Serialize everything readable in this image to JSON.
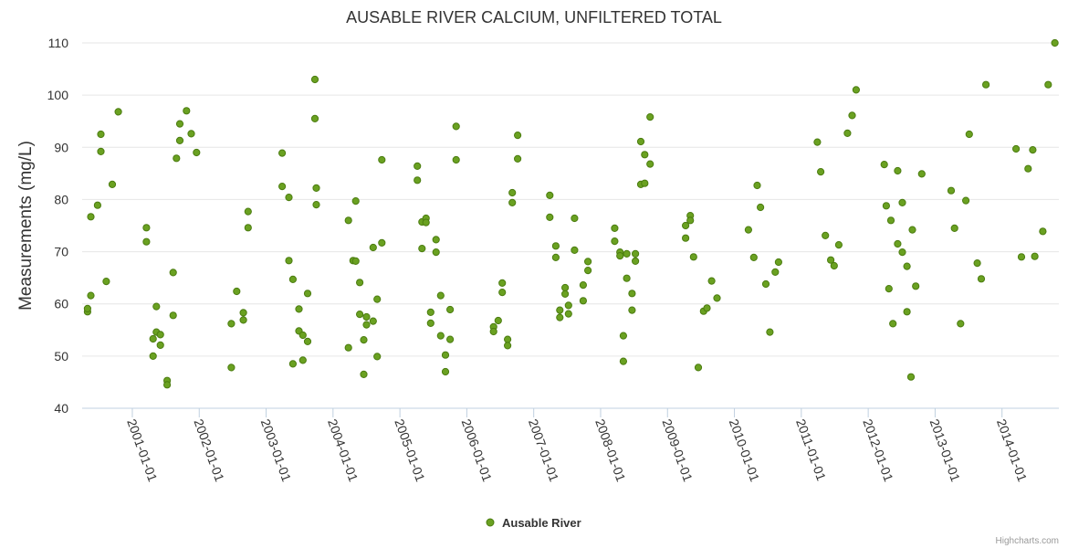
{
  "chart_data": {
    "type": "scatter",
    "title": "AUSABLE RIVER CALCIUM, UNFILTERED TOTAL",
    "xlabel": "",
    "ylabel": "Measurements (mg/L)",
    "ylim": [
      40,
      110
    ],
    "yticks": [
      40,
      50,
      60,
      70,
      80,
      90,
      100,
      110
    ],
    "xlim": [
      2000.25,
      2014.85
    ],
    "xticks": [
      {
        "x": 2001.0,
        "label": "2001-01-01"
      },
      {
        "x": 2002.0,
        "label": "2002-01-01"
      },
      {
        "x": 2003.0,
        "label": "2003-01-01"
      },
      {
        "x": 2004.0,
        "label": "2004-01-01"
      },
      {
        "x": 2005.0,
        "label": "2005-01-01"
      },
      {
        "x": 2006.0,
        "label": "2006-01-01"
      },
      {
        "x": 2007.0,
        "label": "2007-01-01"
      },
      {
        "x": 2008.0,
        "label": "2008-01-01"
      },
      {
        "x": 2009.0,
        "label": "2009-01-01"
      },
      {
        "x": 2010.0,
        "label": "2010-01-01"
      },
      {
        "x": 2011.0,
        "label": "2011-01-01"
      },
      {
        "x": 2012.0,
        "label": "2012-01-01"
      },
      {
        "x": 2013.0,
        "label": "2013-01-01"
      },
      {
        "x": 2014.0,
        "label": "2014-01-01"
      }
    ],
    "grid": true,
    "legend_position": "bottom-center",
    "credit": "Highcharts.com",
    "colors": {
      "marker_fill": "#6aa121",
      "marker_stroke": "#4b7c10",
      "grid": "#e6e6e6",
      "axis": "#c0d0e0",
      "text": "#333333"
    },
    "series": [
      {
        "name": "Ausable River",
        "points": [
          [
            2000.33,
            58.5
          ],
          [
            2000.33,
            59.1
          ],
          [
            2000.38,
            76.7
          ],
          [
            2000.38,
            61.6
          ],
          [
            2000.48,
            78.9
          ],
          [
            2000.53,
            92.5
          ],
          [
            2000.53,
            89.2
          ],
          [
            2000.61,
            64.3
          ],
          [
            2000.7,
            82.9
          ],
          [
            2000.79,
            96.8
          ],
          [
            2001.21,
            74.6
          ],
          [
            2001.21,
            71.9
          ],
          [
            2001.31,
            53.3
          ],
          [
            2001.31,
            50.0
          ],
          [
            2001.36,
            59.5
          ],
          [
            2001.36,
            54.6
          ],
          [
            2001.42,
            54.1
          ],
          [
            2001.42,
            52.1
          ],
          [
            2001.52,
            45.3
          ],
          [
            2001.52,
            44.5
          ],
          [
            2001.61,
            66.0
          ],
          [
            2001.61,
            57.8
          ],
          [
            2001.66,
            87.9
          ],
          [
            2001.71,
            94.5
          ],
          [
            2001.71,
            91.3
          ],
          [
            2001.81,
            97.0
          ],
          [
            2001.88,
            92.6
          ],
          [
            2001.96,
            89.0
          ],
          [
            2002.48,
            56.2
          ],
          [
            2002.48,
            47.8
          ],
          [
            2002.56,
            62.4
          ],
          [
            2002.66,
            58.3
          ],
          [
            2002.66,
            56.9
          ],
          [
            2002.73,
            77.7
          ],
          [
            2002.73,
            74.6
          ],
          [
            2003.24,
            88.9
          ],
          [
            2003.24,
            82.5
          ],
          [
            2003.34,
            80.4
          ],
          [
            2003.34,
            68.3
          ],
          [
            2003.4,
            64.7
          ],
          [
            2003.4,
            48.5
          ],
          [
            2003.49,
            59.0
          ],
          [
            2003.49,
            54.8
          ],
          [
            2003.55,
            54.0
          ],
          [
            2003.55,
            49.2
          ],
          [
            2003.62,
            62.0
          ],
          [
            2003.62,
            52.8
          ],
          [
            2003.73,
            103.0
          ],
          [
            2003.73,
            95.5
          ],
          [
            2003.75,
            82.2
          ],
          [
            2003.75,
            79.0
          ],
          [
            2004.23,
            76.0
          ],
          [
            2004.23,
            51.6
          ],
          [
            2004.3,
            68.3
          ],
          [
            2004.34,
            79.7
          ],
          [
            2004.34,
            68.2
          ],
          [
            2004.4,
            64.1
          ],
          [
            2004.4,
            58.0
          ],
          [
            2004.46,
            53.1
          ],
          [
            2004.46,
            46.5
          ],
          [
            2004.5,
            57.5
          ],
          [
            2004.5,
            56.0
          ],
          [
            2004.6,
            70.8
          ],
          [
            2004.6,
            56.7
          ],
          [
            2004.66,
            60.9
          ],
          [
            2004.66,
            49.9
          ],
          [
            2004.73,
            87.6
          ],
          [
            2004.73,
            71.7
          ],
          [
            2005.26,
            86.4
          ],
          [
            2005.26,
            83.7
          ],
          [
            2005.33,
            75.7
          ],
          [
            2005.33,
            70.6
          ],
          [
            2005.39,
            76.4
          ],
          [
            2005.39,
            75.6
          ],
          [
            2005.46,
            58.4
          ],
          [
            2005.46,
            56.3
          ],
          [
            2005.54,
            72.3
          ],
          [
            2005.54,
            69.9
          ],
          [
            2005.61,
            61.6
          ],
          [
            2005.61,
            53.9
          ],
          [
            2005.68,
            50.2
          ],
          [
            2005.68,
            47.0
          ],
          [
            2005.75,
            58.9
          ],
          [
            2005.75,
            53.2
          ],
          [
            2005.84,
            94.0
          ],
          [
            2005.84,
            87.6
          ],
          [
            2006.4,
            55.6
          ],
          [
            2006.4,
            54.7
          ],
          [
            2006.47,
            56.8
          ],
          [
            2006.53,
            64.0
          ],
          [
            2006.53,
            62.2
          ],
          [
            2006.61,
            53.2
          ],
          [
            2006.61,
            52.0
          ],
          [
            2006.68,
            81.3
          ],
          [
            2006.68,
            79.4
          ],
          [
            2006.76,
            92.3
          ],
          [
            2006.76,
            87.8
          ],
          [
            2007.24,
            80.8
          ],
          [
            2007.24,
            76.6
          ],
          [
            2007.33,
            71.1
          ],
          [
            2007.33,
            68.9
          ],
          [
            2007.39,
            58.8
          ],
          [
            2007.39,
            57.4
          ],
          [
            2007.47,
            63.1
          ],
          [
            2007.47,
            61.9
          ],
          [
            2007.52,
            59.7
          ],
          [
            2007.52,
            58.1
          ],
          [
            2007.61,
            76.4
          ],
          [
            2007.61,
            70.3
          ],
          [
            2007.74,
            63.6
          ],
          [
            2007.74,
            60.6
          ],
          [
            2007.81,
            68.1
          ],
          [
            2007.81,
            66.4
          ],
          [
            2008.21,
            74.5
          ],
          [
            2008.21,
            72.0
          ],
          [
            2008.29,
            69.9
          ],
          [
            2008.29,
            69.2
          ],
          [
            2008.34,
            53.9
          ],
          [
            2008.34,
            49.0
          ],
          [
            2008.39,
            69.6
          ],
          [
            2008.39,
            64.9
          ],
          [
            2008.47,
            62.0
          ],
          [
            2008.47,
            58.8
          ],
          [
            2008.52,
            69.6
          ],
          [
            2008.52,
            68.2
          ],
          [
            2008.6,
            91.1
          ],
          [
            2008.6,
            82.9
          ],
          [
            2008.66,
            88.6
          ],
          [
            2008.66,
            83.1
          ],
          [
            2008.74,
            95.8
          ],
          [
            2008.74,
            86.8
          ],
          [
            2009.27,
            75.0
          ],
          [
            2009.27,
            72.6
          ],
          [
            2009.34,
            76.9
          ],
          [
            2009.34,
            76.0
          ],
          [
            2009.39,
            69.0
          ],
          [
            2009.46,
            47.8
          ],
          [
            2009.54,
            58.6
          ],
          [
            2009.59,
            59.2
          ],
          [
            2009.66,
            64.4
          ],
          [
            2009.74,
            61.1
          ],
          [
            2010.21,
            74.2
          ],
          [
            2010.29,
            68.9
          ],
          [
            2010.34,
            82.7
          ],
          [
            2010.39,
            78.5
          ],
          [
            2010.47,
            63.8
          ],
          [
            2010.53,
            54.6
          ],
          [
            2010.61,
            66.1
          ],
          [
            2010.66,
            68.0
          ],
          [
            2011.24,
            91.0
          ],
          [
            2011.29,
            85.3
          ],
          [
            2011.36,
            73.1
          ],
          [
            2011.44,
            68.4
          ],
          [
            2011.49,
            67.3
          ],
          [
            2011.56,
            71.3
          ],
          [
            2011.69,
            92.7
          ],
          [
            2011.76,
            96.1
          ],
          [
            2011.82,
            101.0
          ],
          [
            2012.24,
            86.7
          ],
          [
            2012.27,
            78.8
          ],
          [
            2012.31,
            62.9
          ],
          [
            2012.34,
            76.0
          ],
          [
            2012.37,
            56.2
          ],
          [
            2012.44,
            71.5
          ],
          [
            2012.44,
            85.5
          ],
          [
            2012.51,
            79.4
          ],
          [
            2012.51,
            69.9
          ],
          [
            2012.58,
            67.2
          ],
          [
            2012.58,
            58.5
          ],
          [
            2012.64,
            46.0
          ],
          [
            2012.66,
            74.2
          ],
          [
            2012.71,
            63.4
          ],
          [
            2012.8,
            84.9
          ],
          [
            2013.24,
            81.7
          ],
          [
            2013.29,
            74.5
          ],
          [
            2013.38,
            56.2
          ],
          [
            2013.46,
            79.8
          ],
          [
            2013.51,
            92.5
          ],
          [
            2013.63,
            67.8
          ],
          [
            2013.69,
            64.8
          ],
          [
            2013.76,
            102.0
          ],
          [
            2014.21,
            89.7
          ],
          [
            2014.29,
            69.0
          ],
          [
            2014.39,
            85.9
          ],
          [
            2014.46,
            89.5
          ],
          [
            2014.49,
            69.1
          ],
          [
            2014.61,
            73.9
          ],
          [
            2014.69,
            102.0
          ],
          [
            2014.79,
            110.0
          ]
        ]
      }
    ]
  }
}
